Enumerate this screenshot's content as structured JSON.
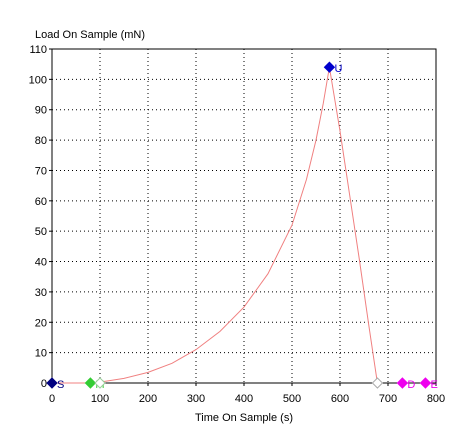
{
  "chart_data": {
    "type": "line",
    "xlabel": "Time On Sample (s)",
    "ylabel": "Load On Sample (mN)",
    "xlim": [
      0,
      800
    ],
    "ylim": [
      0,
      110
    ],
    "xticks": [
      0,
      100,
      200,
      300,
      400,
      500,
      600,
      700,
      800
    ],
    "yticks": [
      0,
      10,
      20,
      30,
      40,
      50,
      60,
      70,
      80,
      90,
      100,
      110
    ],
    "grid": true,
    "curve_color": "#f08080",
    "series": [
      {
        "x": [
          0,
          40,
          80,
          100,
          150,
          200,
          250,
          300,
          350,
          400,
          450,
          500,
          530,
          550,
          565,
          578,
          600,
          620,
          640,
          660,
          678
        ],
        "y": [
          0,
          0,
          0,
          0.3,
          1.5,
          3.5,
          6.5,
          11,
          17,
          25,
          36,
          52,
          67,
          80,
          92,
          104,
          83,
          62,
          41,
          19,
          0
        ]
      }
    ],
    "markers": [
      {
        "x": 0,
        "y": 0,
        "label": "S",
        "color": "#000080",
        "filled": true
      },
      {
        "x": 80,
        "y": 0,
        "label": "M",
        "color": "#33cc33",
        "filled": true
      },
      {
        "x": 100,
        "y": 0,
        "label": "",
        "color": "#99cc99",
        "filled": false
      },
      {
        "x": 578,
        "y": 104,
        "label": "U",
        "color": "#0000cc",
        "filled": true
      },
      {
        "x": 678,
        "y": 0,
        "label": "",
        "color": "#aaaaaa",
        "filled": false
      },
      {
        "x": 730,
        "y": 0,
        "label": "D",
        "color": "#ee00ee",
        "filled": true
      },
      {
        "x": 778,
        "y": 0,
        "label": "E",
        "color": "#ee00ee",
        "filled": true
      }
    ]
  }
}
